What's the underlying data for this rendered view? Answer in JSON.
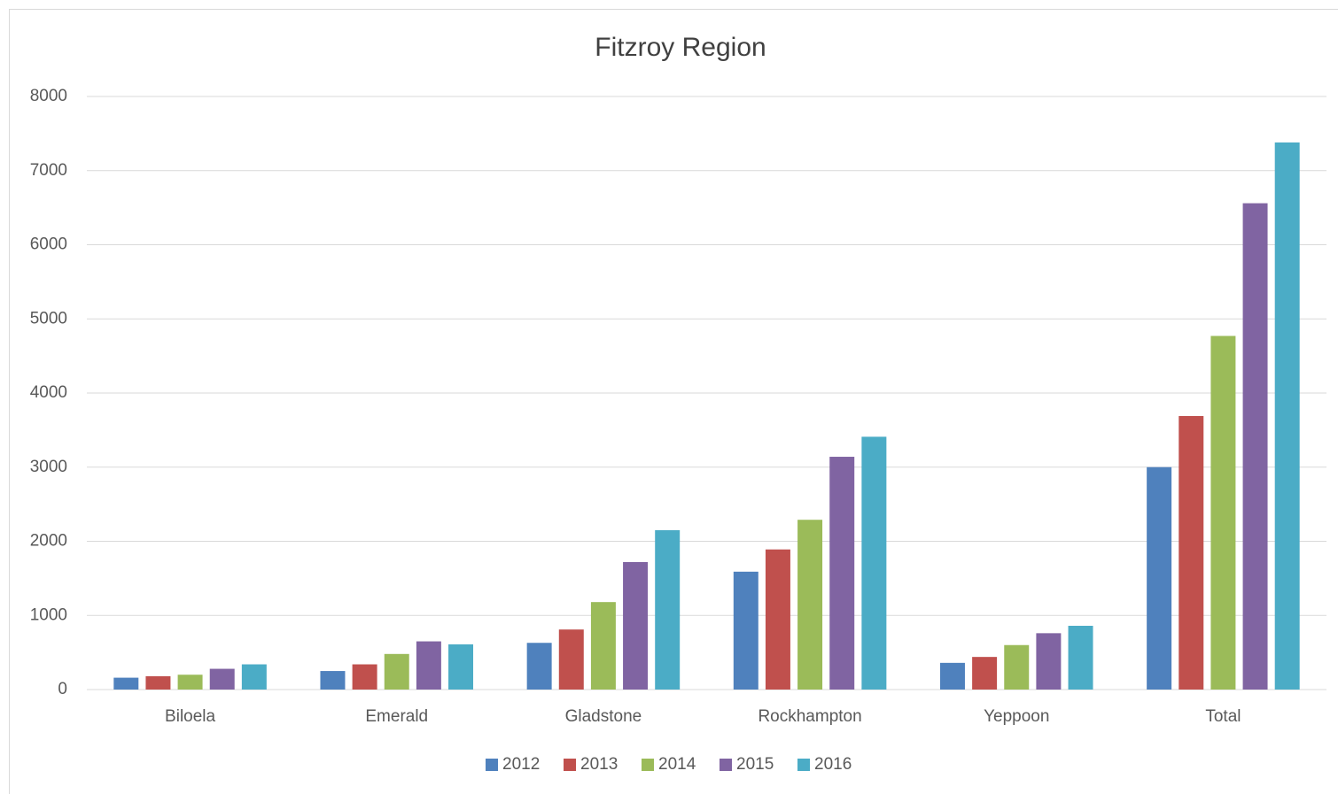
{
  "chart_data": {
    "type": "bar",
    "title": "Fitzroy Region",
    "categories": [
      "Biloela",
      "Emerald",
      "Gladstone",
      "Rockhampton",
      "Yeppoon",
      "Total"
    ],
    "series": [
      {
        "name": "2012",
        "color": "#4f81bd",
        "values": [
          160,
          250,
          630,
          1590,
          360,
          3000
        ]
      },
      {
        "name": "2013",
        "color": "#c0504d",
        "values": [
          180,
          340,
          810,
          1890,
          440,
          3690
        ]
      },
      {
        "name": "2014",
        "color": "#9bbb59",
        "values": [
          200,
          480,
          1180,
          2290,
          600,
          4770
        ]
      },
      {
        "name": "2015",
        "color": "#8064a2",
        "values": [
          280,
          650,
          1720,
          3140,
          760,
          6560
        ]
      },
      {
        "name": "2016",
        "color": "#4bacc6",
        "values": [
          340,
          610,
          2150,
          3410,
          860,
          7380
        ]
      }
    ],
    "ylim": [
      0,
      8000
    ],
    "yticks": [
      0,
      1000,
      2000,
      3000,
      4000,
      5000,
      6000,
      7000,
      8000
    ],
    "grid": true,
    "legend": "bottom"
  }
}
